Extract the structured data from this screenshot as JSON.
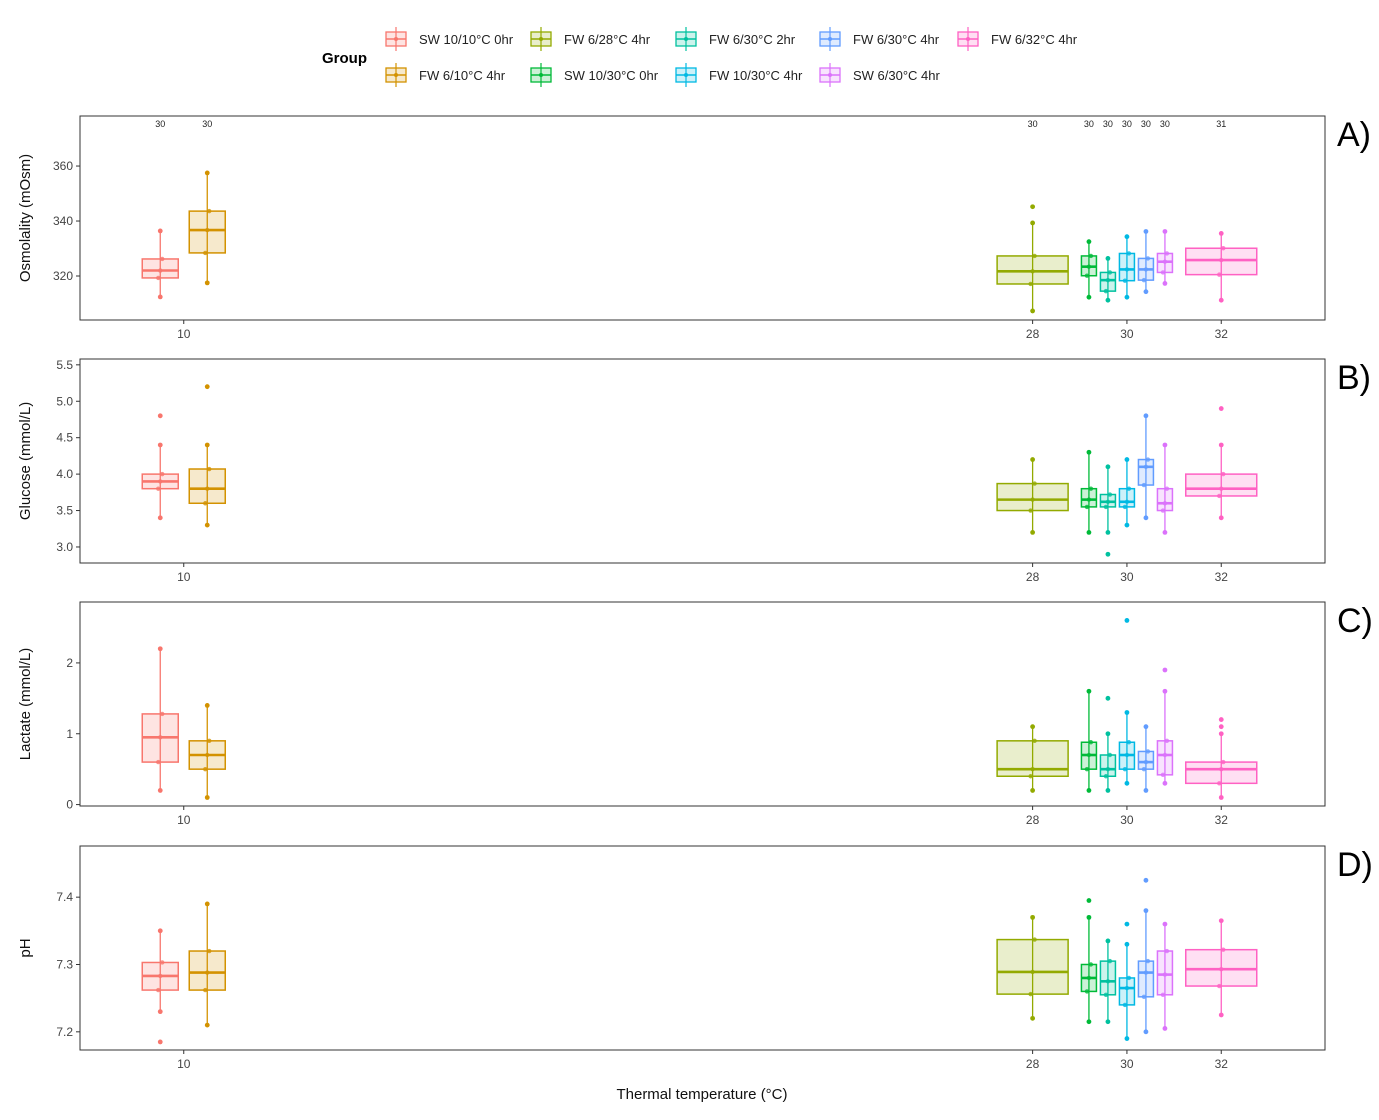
{
  "chart_data": {
    "type": "boxplot",
    "xlabel": "Thermal temperature (°C)",
    "x_ticks": [
      10,
      28,
      30,
      32
    ],
    "xlim": [
      7.8,
      34.2
    ],
    "legend": {
      "title": "Group",
      "placement": "top"
    },
    "groups": [
      {
        "name": "SW 10/10°C 0hr",
        "x": 10,
        "color": "#F8766D",
        "n": "30"
      },
      {
        "name": "FW 6/10°C 4hr",
        "x": 10,
        "color": "#D39200",
        "n": "30"
      },
      {
        "name": "FW 6/28°C 4hr",
        "x": 28,
        "color": "#93AA00",
        "n": "30"
      },
      {
        "name": "SW 10/30°C 0hr",
        "x": 30,
        "color": "#00BA38",
        "n": "30"
      },
      {
        "name": "FW 6/30°C 2hr",
        "x": 30,
        "color": "#00C19F",
        "n": "30"
      },
      {
        "name": "FW 10/30°C 4hr",
        "x": 30,
        "color": "#00B9E3",
        "n": "30"
      },
      {
        "name": "FW 6/30°C 4hr",
        "x": 30,
        "color": "#619CFF",
        "n": "30"
      },
      {
        "name": "SW 6/30°C 4hr",
        "x": 30,
        "color": "#DB72FB",
        "n": "30"
      },
      {
        "name": "FW 6/32°C 4hr",
        "x": 32,
        "color": "#FF61C3",
        "n": "31"
      }
    ],
    "legend_order": [
      0,
      2,
      4,
      6,
      8,
      1,
      3,
      5,
      7
    ],
    "panels": [
      {
        "label": "A)",
        "ylabel": "Osmolality (mOsm)",
        "ylim": [
          304,
          378.2
        ],
        "y_ticks": [
          "320",
          "340",
          "360"
        ],
        "show_n": true,
        "stats": [
          {
            "min": 312.4,
            "q1": 319.3,
            "median": 322,
            "q3": 326.2,
            "max": 336.4,
            "outliers": []
          },
          {
            "min": 317.5,
            "q1": 328.4,
            "median": 336.7,
            "q3": 343.6,
            "max": 357.5,
            "outliers": []
          },
          {
            "min": 307.3,
            "q1": 317.1,
            "median": 321.7,
            "q3": 327.3,
            "max": 339.3,
            "outliers": [
              345.2
            ]
          },
          {
            "min": 312.3,
            "q1": 320.1,
            "median": 323.4,
            "q3": 327.3,
            "max": 332.5,
            "outliers": []
          },
          {
            "min": 311.2,
            "q1": 314.5,
            "median": 318.5,
            "q3": 321.3,
            "max": 326.4,
            "outliers": []
          },
          {
            "min": 312.3,
            "q1": 318.3,
            "median": 322.4,
            "q3": 328.2,
            "max": 334.3,
            "outliers": []
          },
          {
            "min": 314.3,
            "q1": 318.5,
            "median": 322.4,
            "q3": 326.4,
            "max": 336.2,
            "outliers": []
          },
          {
            "min": 317.3,
            "q1": 321.3,
            "median": 325.2,
            "q3": 328.2,
            "max": 336.2,
            "outliers": []
          },
          {
            "min": 311.2,
            "q1": 320.5,
            "median": 325.8,
            "q3": 330.1,
            "max": 335.5,
            "outliers": []
          }
        ]
      },
      {
        "label": "B)",
        "ylabel": "Glucose (mmol/L)",
        "ylim": [
          2.78,
          5.58
        ],
        "y_ticks": [
          "3.0",
          "3.5",
          "4.0",
          "4.5",
          "5.0",
          "5.5"
        ],
        "show_n": false,
        "stats": [
          {
            "min": 3.4,
            "q1": 3.8,
            "median": 3.9,
            "q3": 4.0,
            "max": 4.4,
            "outliers": [
              4.8
            ]
          },
          {
            "min": 3.3,
            "q1": 3.6,
            "median": 3.8,
            "q3": 4.07,
            "max": 4.4,
            "outliers": [
              5.2
            ]
          },
          {
            "min": 3.2,
            "q1": 3.5,
            "median": 3.65,
            "q3": 3.87,
            "max": 4.2,
            "outliers": []
          },
          {
            "min": 3.2,
            "q1": 3.55,
            "median": 3.65,
            "q3": 3.8,
            "max": 4.3,
            "outliers": []
          },
          {
            "min": 3.2,
            "q1": 3.55,
            "median": 3.62,
            "q3": 3.72,
            "max": 4.1,
            "outliers": [
              2.9
            ]
          },
          {
            "min": 3.3,
            "q1": 3.55,
            "median": 3.62,
            "q3": 3.8,
            "max": 4.2,
            "outliers": []
          },
          {
            "min": 3.4,
            "q1": 3.85,
            "median": 4.1,
            "q3": 4.2,
            "max": 4.8,
            "outliers": []
          },
          {
            "min": 3.2,
            "q1": 3.5,
            "median": 3.6,
            "q3": 3.8,
            "max": 4.4,
            "outliers": []
          },
          {
            "min": 3.4,
            "q1": 3.7,
            "median": 3.8,
            "q3": 4.0,
            "max": 4.4,
            "outliers": [
              4.9
            ]
          }
        ]
      },
      {
        "label": "C)",
        "ylabel": "Lactate (mmol/L)",
        "ylim": [
          -0.02,
          2.86
        ],
        "y_ticks": [
          "0",
          "1",
          "2"
        ],
        "show_n": false,
        "stats": [
          {
            "min": 0.2,
            "q1": 0.6,
            "median": 0.95,
            "q3": 1.28,
            "max": 2.2,
            "outliers": []
          },
          {
            "min": 0.1,
            "q1": 0.5,
            "median": 0.7,
            "q3": 0.9,
            "max": 1.4,
            "outliers": []
          },
          {
            "min": 0.2,
            "q1": 0.4,
            "median": 0.5,
            "q3": 0.9,
            "max": 1.1,
            "outliers": []
          },
          {
            "min": 0.2,
            "q1": 0.5,
            "median": 0.7,
            "q3": 0.88,
            "max": 1.6,
            "outliers": []
          },
          {
            "min": 0.2,
            "q1": 0.4,
            "median": 0.5,
            "q3": 0.7,
            "max": 1.0,
            "outliers": [
              1.5
            ]
          },
          {
            "min": 0.3,
            "q1": 0.5,
            "median": 0.7,
            "q3": 0.88,
            "max": 1.3,
            "outliers": [
              2.6
            ]
          },
          {
            "min": 0.2,
            "q1": 0.5,
            "median": 0.6,
            "q3": 0.75,
            "max": 1.1,
            "outliers": []
          },
          {
            "min": 0.3,
            "q1": 0.42,
            "median": 0.7,
            "q3": 0.9,
            "max": 1.6,
            "outliers": [
              1.9
            ]
          },
          {
            "min": 0.1,
            "q1": 0.3,
            "median": 0.5,
            "q3": 0.6,
            "max": 1.0,
            "outliers": [
              1.1,
              1.2
            ]
          }
        ]
      },
      {
        "label": "D)",
        "ylabel": "pH",
        "ylim": [
          7.173,
          7.476
        ],
        "y_ticks": [
          "7.2",
          "7.3",
          "7.4"
        ],
        "show_n": false,
        "stats": [
          {
            "min": 7.23,
            "q1": 7.262,
            "median": 7.283,
            "q3": 7.303,
            "max": 7.35,
            "outliers": [
              7.185
            ]
          },
          {
            "min": 7.21,
            "q1": 7.262,
            "median": 7.288,
            "q3": 7.32,
            "max": 7.39,
            "outliers": []
          },
          {
            "min": 7.22,
            "q1": 7.256,
            "median": 7.289,
            "q3": 7.337,
            "max": 7.37,
            "outliers": []
          },
          {
            "min": 7.215,
            "q1": 7.26,
            "median": 7.28,
            "q3": 7.3,
            "max": 7.37,
            "outliers": [
              7.395
            ]
          },
          {
            "min": 7.215,
            "q1": 7.255,
            "median": 7.275,
            "q3": 7.305,
            "max": 7.335,
            "outliers": []
          },
          {
            "min": 7.19,
            "q1": 7.24,
            "median": 7.265,
            "q3": 7.28,
            "max": 7.33,
            "outliers": [
              7.36
            ]
          },
          {
            "min": 7.2,
            "q1": 7.252,
            "median": 7.288,
            "q3": 7.305,
            "max": 7.38,
            "outliers": [
              7.425
            ]
          },
          {
            "min": 7.205,
            "q1": 7.255,
            "median": 7.285,
            "q3": 7.32,
            "max": 7.36,
            "outliers": []
          },
          {
            "min": 7.225,
            "q1": 7.268,
            "median": 7.293,
            "q3": 7.322,
            "max": 7.365,
            "outliers": []
          }
        ]
      }
    ]
  }
}
